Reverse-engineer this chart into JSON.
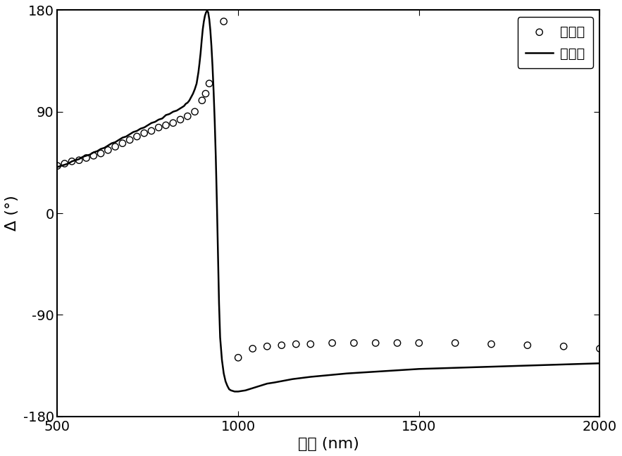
{
  "xlim": [
    500,
    2000
  ],
  "ylim": [
    -180,
    180
  ],
  "xticks": [
    500,
    1000,
    1500,
    2000
  ],
  "yticks": [
    -180,
    -90,
    0,
    90,
    180
  ],
  "xlabel": "波长 (nm)",
  "ylabel": "Δ (°)",
  "legend_exp": "实验值",
  "legend_fit": "拟合值",
  "bg_color": "#ffffff",
  "line_color": "#000000",
  "scatter_color": "#000000",
  "scatter_facecolor": "none",
  "scatter_size": 45,
  "line_width": 1.8,
  "exp_x": [
    500,
    520,
    540,
    560,
    580,
    600,
    620,
    640,
    660,
    680,
    700,
    720,
    740,
    760,
    780,
    800,
    820,
    840,
    860,
    880,
    900,
    910,
    920,
    960,
    1000,
    1040,
    1080,
    1120,
    1160,
    1200,
    1260,
    1320,
    1380,
    1440,
    1500,
    1600,
    1700,
    1800,
    1900,
    2000
  ],
  "exp_y": [
    42,
    44,
    46,
    47,
    49,
    51,
    53,
    56,
    59,
    62,
    65,
    68,
    71,
    73,
    76,
    78,
    80,
    83,
    86,
    90,
    100,
    106,
    115,
    170,
    -128,
    -120,
    -118,
    -117,
    -116,
    -116,
    -115,
    -115,
    -115,
    -115,
    -115,
    -115,
    -116,
    -117,
    -118,
    -120
  ],
  "fit_x": [
    500,
    510,
    520,
    530,
    540,
    550,
    560,
    570,
    580,
    590,
    600,
    610,
    620,
    630,
    640,
    650,
    660,
    670,
    680,
    690,
    700,
    710,
    720,
    730,
    740,
    750,
    760,
    770,
    780,
    790,
    800,
    810,
    820,
    830,
    840,
    850,
    855,
    860,
    865,
    870,
    875,
    880,
    885,
    890,
    893,
    896,
    899,
    902,
    905,
    908,
    911,
    914,
    917,
    920,
    923,
    926,
    929,
    932,
    935,
    938,
    941,
    944,
    947,
    950,
    955,
    960,
    965,
    970,
    975,
    980,
    990,
    1000,
    1020,
    1040,
    1060,
    1080,
    1100,
    1150,
    1200,
    1300,
    1400,
    1500,
    1600,
    1700,
    1800,
    1900,
    2000
  ],
  "fit_y": [
    41,
    42,
    43,
    44,
    46,
    47,
    48,
    50,
    51,
    52,
    54,
    55,
    57,
    58,
    60,
    62,
    63,
    65,
    67,
    68,
    70,
    72,
    73,
    75,
    76,
    78,
    80,
    81,
    83,
    84,
    87,
    88,
    90,
    91,
    93,
    95,
    97,
    98,
    100,
    103,
    106,
    110,
    115,
    125,
    133,
    142,
    153,
    163,
    170,
    175,
    178,
    179.5,
    178,
    172,
    162,
    148,
    130,
    108,
    82,
    50,
    10,
    -35,
    -80,
    -110,
    -130,
    -142,
    -149,
    -153,
    -156,
    -157,
    -158,
    -158,
    -157,
    -155,
    -153,
    -151,
    -150,
    -147,
    -145,
    -142,
    -140,
    -138,
    -137,
    -136,
    -135,
    -134,
    -133
  ]
}
